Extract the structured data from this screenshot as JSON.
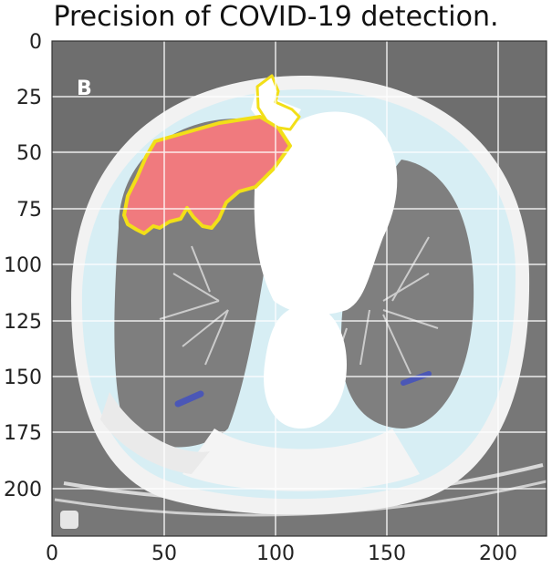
{
  "title": "Precision of COVID-19 detection.",
  "panel_label": "B",
  "axes": {
    "x_range": [
      0,
      224
    ],
    "y_range": [
      0,
      224
    ],
    "x_ticks": [
      "0",
      "50",
      "100",
      "150",
      "200"
    ],
    "y_ticks": [
      "0",
      "25",
      "50",
      "75",
      "100",
      "125",
      "150",
      "175",
      "200"
    ]
  },
  "colors": {
    "lesion_fill": "#f07a7e",
    "lesion_outline": "#f2df18",
    "false_marks": "#4b57b6",
    "grid": "#ffffff",
    "background": "#757575"
  }
}
